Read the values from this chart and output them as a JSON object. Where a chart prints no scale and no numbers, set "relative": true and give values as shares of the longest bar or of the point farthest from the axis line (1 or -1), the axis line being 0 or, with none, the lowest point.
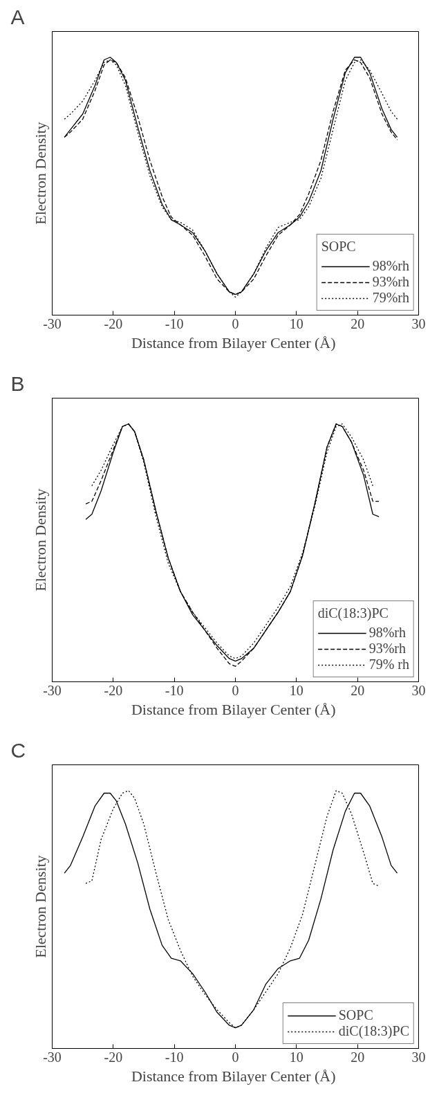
{
  "chart_data": [
    {
      "type": "line",
      "title": "A",
      "xlabel": "Distance from Bilayer Center  (Å)",
      "ylabel": "Electron Density",
      "legend_title": "SOPC",
      "legend": "bottom right",
      "relative": true,
      "xlim": [
        -30,
        30
      ],
      "xticks": [
        -30,
        -20,
        -10,
        0,
        10,
        20,
        30
      ],
      "tick_labels": "x",
      "grid": false,
      "series": [
        {
          "name": "98%rh",
          "color": "#000000",
          "line_style": "solid",
          "x": [
            -28,
            -27,
            -25,
            -23,
            -21.5,
            -20.5,
            -19.5,
            -18,
            -16,
            -14,
            -12,
            -10.5,
            -9,
            -7,
            -5,
            -3,
            -1,
            0,
            1,
            3,
            5,
            7,
            9,
            10.5,
            12,
            14,
            16,
            18,
            19.5,
            20.5,
            22,
            24,
            25.5,
            26.5
          ],
          "values": [
            0.69,
            0.72,
            0.78,
            0.89,
            0.99,
            1.0,
            0.98,
            0.91,
            0.73,
            0.56,
            0.43,
            0.37,
            0.35,
            0.32,
            0.25,
            0.16,
            0.09,
            0.08,
            0.09,
            0.16,
            0.25,
            0.32,
            0.35,
            0.38,
            0.44,
            0.56,
            0.76,
            0.94,
            1.0,
            1.0,
            0.94,
            0.8,
            0.72,
            0.69
          ]
        },
        {
          "name": "93%rh",
          "color": "#000000",
          "line_style": "dashed",
          "x": [
            -28,
            -27,
            -25,
            -23,
            -21.5,
            -20.5,
            -19.5,
            -18,
            -16,
            -14,
            -12,
            -10.5,
            -9,
            -7,
            -5,
            -3,
            -1,
            0,
            1,
            3,
            5,
            7,
            9,
            10.5,
            12,
            14,
            16,
            18,
            19.5,
            20.5,
            22,
            24,
            25.5,
            26.5
          ],
          "values": [
            0.69,
            0.71,
            0.76,
            0.87,
            0.97,
            0.99,
            0.98,
            0.92,
            0.77,
            0.6,
            0.46,
            0.38,
            0.35,
            0.31,
            0.23,
            0.14,
            0.09,
            0.08,
            0.09,
            0.14,
            0.23,
            0.31,
            0.35,
            0.39,
            0.47,
            0.6,
            0.79,
            0.95,
            0.99,
            0.98,
            0.92,
            0.78,
            0.71,
            0.68
          ]
        },
        {
          "name": "79%rh",
          "color": "#000000",
          "line_style": "dotted",
          "x": [
            -28,
            -27,
            -25,
            -23,
            -21.5,
            -20.5,
            -19.5,
            -18,
            -16,
            -14,
            -12,
            -10.5,
            -9,
            -7,
            -5,
            -3,
            -1,
            0,
            1,
            3,
            5,
            7,
            9,
            10.5,
            12,
            14,
            16,
            18,
            19.5,
            20.5,
            22,
            24,
            25.5,
            26.5
          ],
          "values": [
            0.76,
            0.78,
            0.83,
            0.91,
            0.98,
            0.99,
            0.97,
            0.89,
            0.71,
            0.54,
            0.42,
            0.37,
            0.36,
            0.33,
            0.25,
            0.16,
            0.09,
            0.07,
            0.09,
            0.16,
            0.26,
            0.34,
            0.36,
            0.37,
            0.42,
            0.53,
            0.72,
            0.91,
            0.98,
            0.99,
            0.95,
            0.86,
            0.79,
            0.76
          ]
        }
      ]
    },
    {
      "type": "line",
      "title": "B",
      "xlabel": "Distance from Bilayer Center  (Å)",
      "ylabel": "Electron Density",
      "legend_title": "diC(18:3)PC",
      "legend": "bottom right",
      "relative": true,
      "xlim": [
        -30,
        30
      ],
      "xticks": [
        -30,
        -20,
        -10,
        0,
        10,
        20,
        30
      ],
      "tick_labels": "x",
      "grid": false,
      "series": [
        {
          "name": "98%rh",
          "color": "#000000",
          "line_style": "solid",
          "x": [
            -24.5,
            -23.5,
            -22,
            -20,
            -18.5,
            -17.5,
            -16.5,
            -15,
            -13,
            -11,
            -9,
            -7,
            -5,
            -3,
            -1,
            0,
            1,
            3,
            5,
            7,
            9,
            11,
            13,
            15,
            16.5,
            17.5,
            19,
            21,
            22.5,
            23.5
          ],
          "values": [
            0.63,
            0.65,
            0.74,
            0.89,
            0.99,
            1.0,
            0.97,
            0.86,
            0.66,
            0.48,
            0.35,
            0.26,
            0.2,
            0.14,
            0.09,
            0.08,
            0.09,
            0.13,
            0.2,
            0.27,
            0.35,
            0.49,
            0.69,
            0.91,
            1.0,
            0.99,
            0.93,
            0.8,
            0.65,
            0.64
          ]
        },
        {
          "name": "93%rh",
          "color": "#000000",
          "line_style": "dashed",
          "x": [
            -24.5,
            -23.5,
            -22,
            -20,
            -18.5,
            -17.5,
            -16.5,
            -15,
            -13,
            -11,
            -9,
            -7,
            -5,
            -3,
            -1,
            0,
            1,
            3,
            5,
            7,
            9,
            11,
            13,
            15,
            16.5,
            17.5,
            19,
            21,
            22.5,
            23.5
          ],
          "values": [
            0.69,
            0.7,
            0.78,
            0.9,
            0.99,
            1.0,
            0.97,
            0.86,
            0.66,
            0.48,
            0.35,
            0.27,
            0.2,
            0.13,
            0.07,
            0.06,
            0.08,
            0.13,
            0.2,
            0.27,
            0.35,
            0.49,
            0.69,
            0.91,
            1.0,
            0.99,
            0.93,
            0.82,
            0.7,
            0.7
          ]
        },
        {
          "name": "79% rh",
          "color": "#000000",
          "line_style": "dotted",
          "x": [
            -23.5,
            -22,
            -20,
            -18.5,
            -17.5,
            -16.5,
            -15,
            -13,
            -11,
            -9,
            -7,
            -5,
            -3,
            -1,
            0,
            1,
            3,
            5,
            7,
            9,
            11,
            13,
            15,
            16.5,
            17.5,
            19,
            21,
            22.5
          ],
          "values": [
            0.76,
            0.82,
            0.92,
            0.99,
            1.0,
            0.97,
            0.85,
            0.64,
            0.46,
            0.35,
            0.27,
            0.21,
            0.15,
            0.1,
            0.09,
            0.1,
            0.15,
            0.22,
            0.29,
            0.37,
            0.5,
            0.68,
            0.89,
            0.99,
            1.0,
            0.95,
            0.86,
            0.76
          ]
        }
      ]
    },
    {
      "type": "line",
      "title": "C",
      "xlabel": "Distance from Bilayer Center  (Å)",
      "ylabel": "Electron Density",
      "legend": "bottom right",
      "relative": true,
      "xlim": [
        -30,
        30
      ],
      "xticks": [
        -30,
        -20,
        -10,
        0,
        10,
        20,
        30
      ],
      "tick_labels": "x",
      "grid": false,
      "series": [
        {
          "name": "SOPC",
          "color": "#000000",
          "line_style": "solid",
          "x": [
            -28,
            -27,
            -25,
            -23,
            -21.5,
            -20.5,
            -19.5,
            -18,
            -16,
            -14,
            -12,
            -10.5,
            -9,
            -7,
            -5,
            -3,
            -1,
            0,
            1,
            3,
            5,
            7,
            9,
            10.5,
            12,
            14,
            16,
            18,
            19.5,
            20.5,
            22,
            24,
            25.5,
            26.5
          ],
          "values": [
            0.68,
            0.71,
            0.82,
            0.94,
            0.99,
            0.99,
            0.96,
            0.87,
            0.72,
            0.54,
            0.4,
            0.35,
            0.34,
            0.29,
            0.22,
            0.14,
            0.09,
            0.08,
            0.09,
            0.15,
            0.25,
            0.31,
            0.34,
            0.35,
            0.42,
            0.58,
            0.77,
            0.92,
            0.99,
            0.99,
            0.94,
            0.82,
            0.71,
            0.68
          ]
        },
        {
          "name": "diC(18:3)PC",
          "color": "#000000",
          "line_style": "dotted",
          "x": [
            -24.5,
            -23.5,
            -22,
            -20,
            -18.5,
            -17.5,
            -16.5,
            -15,
            -13,
            -11,
            -9,
            -7,
            -5,
            -3,
            -1,
            0,
            1,
            3,
            5,
            7,
            9,
            11,
            13,
            15,
            16.5,
            17.5,
            19,
            21,
            22.5,
            23.5
          ],
          "values": [
            0.64,
            0.65,
            0.81,
            0.93,
            0.99,
            1.0,
            0.97,
            0.87,
            0.68,
            0.5,
            0.38,
            0.28,
            0.21,
            0.15,
            0.1,
            0.08,
            0.09,
            0.15,
            0.22,
            0.29,
            0.39,
            0.52,
            0.71,
            0.9,
            1.0,
            0.99,
            0.91,
            0.76,
            0.64,
            0.63
          ]
        }
      ]
    }
  ]
}
